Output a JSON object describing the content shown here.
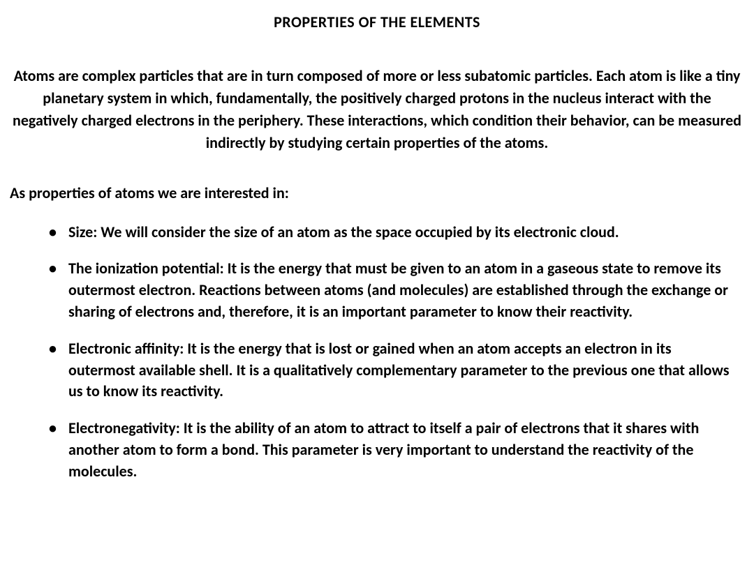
{
  "title": "PROPERTIES OF THE ELEMENTS",
  "intro": "Atoms are complex particles that are in turn composed of more or less subatomic particles. Each atom is like a tiny planetary system in which, fundamentally, the positively charged protons in the nucleus interact with the negatively charged electrons in the periphery. These interactions, which condition their behavior, can be measured indirectly by studying certain properties of the atoms.",
  "subheading": "As properties of atoms we are interested in:",
  "items": [
    "Size: We will consider the size of an atom as the space occupied by its electronic cloud.",
    "The ionization potential: It is the energy that must be given to an atom in a gaseous state to remove its outermost electron. Reactions between atoms (and molecules) are established through the exchange or sharing of electrons and, therefore, it is an important parameter to know their reactivity.",
    "Electronic affinity: It is the energy that is lost or gained when an atom accepts an electron in its outermost available shell. It is a qualitatively complementary parameter to the previous one that allows us to know its reactivity.",
    "Electronegativity: It is the ability of an atom to attract to itself a pair of electrons that it shares with another atom to form a bond. This parameter is very important to understand the reactivity of the molecules."
  ],
  "colors": {
    "background": "#ffffff",
    "text": "#000000"
  },
  "typography": {
    "title_fontsize": 22,
    "body_fontsize": 22,
    "font_family": "Calibri, Arial, sans-serif",
    "font_weight": "bold"
  }
}
